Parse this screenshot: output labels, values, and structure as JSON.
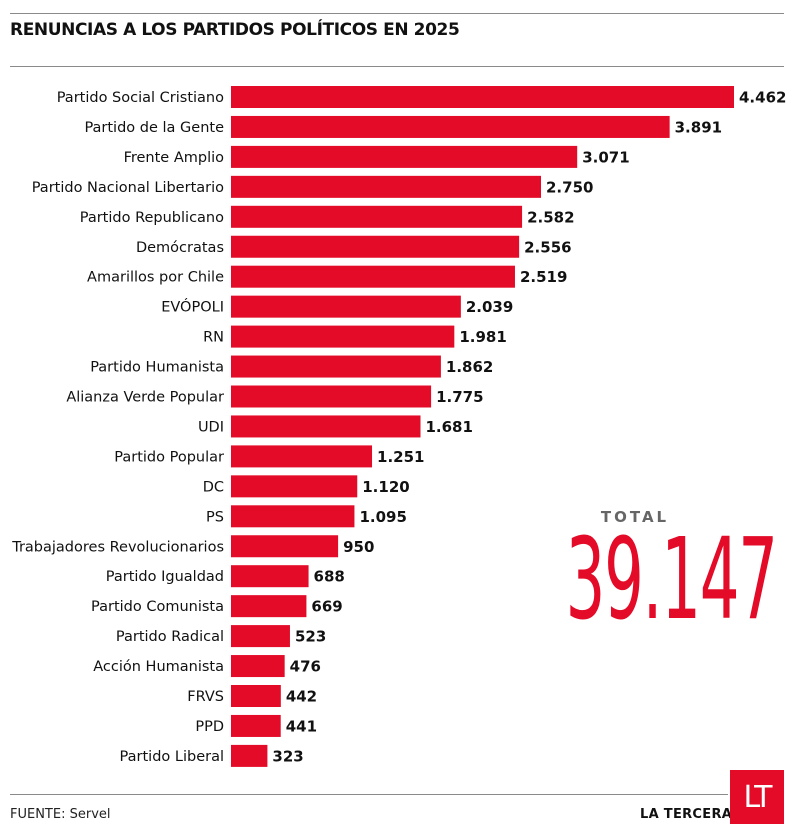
{
  "header": {
    "title": "RENUNCIAS A LOS PARTIDOS POLÍTICOS EN 2025"
  },
  "total": {
    "label": "TOTAL",
    "value": "39.147"
  },
  "footer": {
    "source": "FUENTE: Servel",
    "brand": "LA TERCERA",
    "logo_text": "LT"
  },
  "colors": {
    "bar": "#e30b27",
    "accent": "#e30b27",
    "text": "#111111"
  },
  "chart_data": {
    "type": "bar",
    "orientation": "horizontal",
    "categories": [
      "Partido Social Cristiano",
      "Partido de la Gente",
      "Frente Amplio",
      "Partido Nacional Libertario",
      "Partido Republicano",
      "Demócratas",
      "Amarillos por Chile",
      "EVÓPOLI",
      "RN",
      "Partido Humanista",
      "Alianza Verde Popular",
      "UDI",
      "Partido Popular",
      "DC",
      "PS",
      "Trabajadores Revolucionarios",
      "Partido Igualdad",
      "Partido Comunista",
      "Partido Radical",
      "Acción Humanista",
      "FRVS",
      "PPD",
      "Partido Liberal"
    ],
    "values": [
      4462,
      3891,
      3071,
      2750,
      2582,
      2556,
      2519,
      2039,
      1981,
      1862,
      1775,
      1681,
      1251,
      1120,
      1095,
      950,
      688,
      669,
      523,
      476,
      442,
      441,
      323
    ],
    "value_labels": [
      "4.462",
      "3.891",
      "3.071",
      "2.750",
      "2.582",
      "2.556",
      "2.519",
      "2.039",
      "1.981",
      "1.862",
      "1.775",
      "1.681",
      "1.251",
      "1.120",
      "1.095",
      "950",
      "688",
      "669",
      "523",
      "476",
      "442",
      "441",
      "323"
    ],
    "title": "RENUNCIAS A LOS PARTIDOS POLÍTICOS EN 2025",
    "xlabel": "",
    "ylabel": "",
    "xlim": [
      0,
      4462
    ],
    "grid": false,
    "legend": "none"
  }
}
